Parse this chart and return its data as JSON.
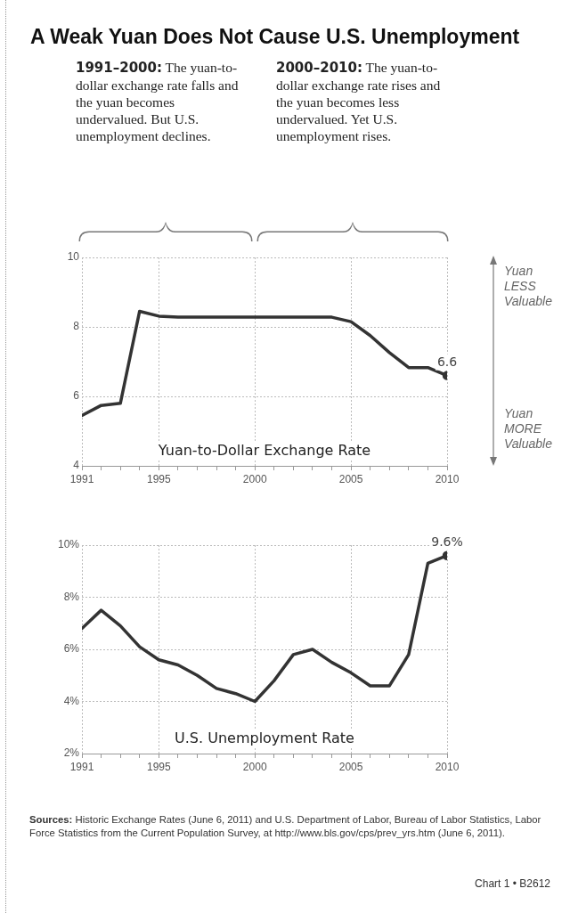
{
  "chart_data": [
    {
      "type": "line",
      "title": "A Weak Yuan Does Not Cause U.S. Unemployment",
      "annotations": [
        "1991–2000: The yuan-to-dollar exchange rate falls and the yuan becomes undervalued. But U.S. unemployment declines.",
        "2000–2010: The yuan-to-dollar exchange rate rises and the yuan becomes less undervalued. Yet U.S. unemployment rises.",
        "Yuan LESS Valuable",
        "Yuan MORE Valuable"
      ],
      "x": [
        1991,
        1992,
        1993,
        1994,
        1995,
        1996,
        1997,
        1998,
        1999,
        2000,
        2001,
        2002,
        2003,
        2004,
        2005,
        2006,
        2007,
        2008,
        2009,
        2010
      ],
      "series": [
        {
          "name": "Yuan-to-Dollar Exchange Rate",
          "color": "#333333",
          "values": [
            5.45,
            5.74,
            5.8,
            8.45,
            8.31,
            8.28,
            8.28,
            8.28,
            8.28,
            8.28,
            8.28,
            8.28,
            8.28,
            8.28,
            8.15,
            7.75,
            7.26,
            6.83,
            6.83,
            6.6
          ],
          "value_labels": [
            null,
            null,
            null,
            null,
            null,
            null,
            null,
            null,
            null,
            null,
            null,
            null,
            null,
            null,
            null,
            null,
            null,
            null,
            null,
            "6.6"
          ]
        }
      ],
      "xlim": [
        1991,
        2010
      ],
      "xticks": [
        1991,
        {
          "value": 1992,
          "label": null
        },
        {
          "value": 1993,
          "label": null
        },
        {
          "value": 1994,
          "label": null
        },
        1995,
        {
          "value": 1996,
          "label": null
        },
        {
          "value": 1997,
          "label": null
        },
        {
          "value": 1998,
          "label": null
        },
        {
          "value": 1999,
          "label": null
        },
        2000,
        {
          "value": 2001,
          "label": null
        },
        {
          "value": 2002,
          "label": null
        },
        {
          "value": 2003,
          "label": null
        },
        {
          "value": 2004,
          "label": null
        },
        2005,
        {
          "value": 2006,
          "label": null
        },
        {
          "value": 2007,
          "label": null
        },
        {
          "value": 2008,
          "label": null
        },
        {
          "value": 2009,
          "label": null
        },
        2010
      ],
      "ylim": [
        4,
        10
      ],
      "yticks": [
        4,
        6,
        8,
        10
      ],
      "grid": true
    },
    {
      "type": "line",
      "annotations": [
        "Sources: Historic Exchange Rates (June 6, 2011) and U.S. Department of Labor, Bureau of Labor Statistics, Labor Force Statistics from the Current Population Survey, at http://www.bls.gov/cps/prev_yrs.htm (June 6, 2011).",
        "Chart 1 • B2612"
      ],
      "x": [
        1991,
        1992,
        1993,
        1994,
        1995,
        1996,
        1997,
        1998,
        1999,
        2000,
        2001,
        2002,
        2003,
        2004,
        2005,
        2006,
        2007,
        2008,
        2009,
        2010
      ],
      "series": [
        {
          "name": "U.S. Unemployment Rate",
          "color": "#333333",
          "values": [
            6.8,
            7.5,
            6.9,
            6.1,
            5.6,
            5.4,
            5.0,
            4.5,
            4.3,
            4.0,
            4.8,
            5.8,
            6.0,
            5.5,
            5.1,
            4.6,
            4.6,
            5.8,
            9.3,
            9.6
          ],
          "value_labels": [
            null,
            null,
            null,
            null,
            null,
            null,
            null,
            null,
            null,
            null,
            null,
            null,
            null,
            null,
            null,
            null,
            null,
            null,
            null,
            "9.6%"
          ]
        }
      ],
      "xlim": [
        1991,
        2010
      ],
      "xticks": [
        1991,
        {
          "value": 1992,
          "label": null
        },
        {
          "value": 1993,
          "label": null
        },
        {
          "value": 1994,
          "label": null
        },
        1995,
        {
          "value": 1996,
          "label": null
        },
        {
          "value": 1997,
          "label": null
        },
        {
          "value": 1998,
          "label": null
        },
        {
          "value": 1999,
          "label": null
        },
        2000,
        {
          "value": 2001,
          "label": null
        },
        {
          "value": 2002,
          "label": null
        },
        {
          "value": 2003,
          "label": null
        },
        {
          "value": 2004,
          "label": null
        },
        2005,
        {
          "value": 2006,
          "label": null
        },
        {
          "value": 2007,
          "label": null
        },
        {
          "value": 2008,
          "label": null
        },
        {
          "value": 2009,
          "label": null
        },
        2010
      ],
      "ylim": [
        2,
        10
      ],
      "yticks": [
        {
          "value": 2,
          "label": "2%"
        },
        {
          "value": 4,
          "label": "4%"
        },
        {
          "value": 6,
          "label": "6%"
        },
        {
          "value": 8,
          "label": "8%"
        },
        {
          "value": 10,
          "label": "10%"
        }
      ],
      "grid": true
    }
  ]
}
